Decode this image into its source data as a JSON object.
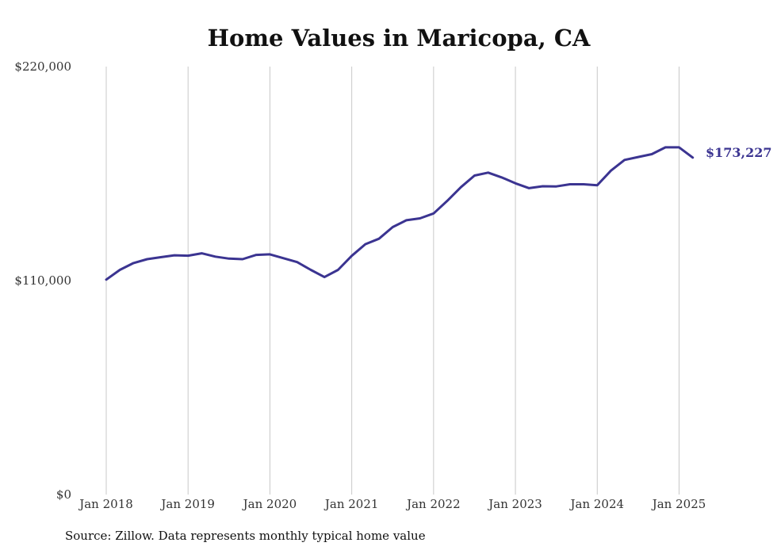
{
  "chart_data": {
    "type": "line",
    "title": "Home Values in Maricopa, CA",
    "xlabel": "",
    "ylabel": "",
    "ylim": [
      0,
      220000
    ],
    "yticks": [
      {
        "value": 0,
        "label": "$0"
      },
      {
        "value": 110000,
        "label": "$110,000"
      },
      {
        "value": 220000,
        "label": "$220,000"
      }
    ],
    "xticks": [
      {
        "value": 2018,
        "label": "Jan 2018"
      },
      {
        "value": 2019,
        "label": "Jan 2019"
      },
      {
        "value": 2020,
        "label": "Jan 2020"
      },
      {
        "value": 2021,
        "label": "Jan 2021"
      },
      {
        "value": 2022,
        "label": "Jan 2022"
      },
      {
        "value": 2023,
        "label": "Jan 2023"
      },
      {
        "value": 2024,
        "label": "Jan 2024"
      },
      {
        "value": 2025,
        "label": "Jan 2025"
      }
    ],
    "grid": "vertical",
    "line_color": "#3b3491",
    "end_label": "$173,227",
    "series": [
      {
        "x": [
          "2018-01",
          "2018-03",
          "2018-05",
          "2018-07",
          "2018-09",
          "2018-11",
          "2019-01",
          "2019-03",
          "2019-05",
          "2019-07",
          "2019-09",
          "2019-11",
          "2020-01",
          "2020-03",
          "2020-05",
          "2020-07",
          "2020-09",
          "2020-11",
          "2021-01",
          "2021-03",
          "2021-05",
          "2021-07",
          "2021-09",
          "2021-11",
          "2022-01",
          "2022-03",
          "2022-05",
          "2022-07",
          "2022-09",
          "2022-11",
          "2023-01",
          "2023-03",
          "2023-05",
          "2023-07",
          "2023-09",
          "2023-11",
          "2024-01",
          "2024-03",
          "2024-05",
          "2024-07",
          "2024-09",
          "2024-11",
          "2025-01",
          "2025-03"
        ],
        "y": [
          110500,
          115500,
          119000,
          121000,
          122000,
          123000,
          122800,
          124000,
          122300,
          121300,
          121000,
          123200,
          123500,
          121500,
          119500,
          115500,
          111800,
          115500,
          122700,
          128700,
          131500,
          137500,
          141000,
          142000,
          144500,
          151000,
          158000,
          164000,
          165500,
          163000,
          160000,
          157500,
          158500,
          158400,
          159500,
          159500,
          159000,
          166500,
          172000,
          173500,
          175000,
          178500,
          178500,
          173227
        ]
      }
    ]
  },
  "source": "Source: Zillow. Data represents monthly typical home value"
}
